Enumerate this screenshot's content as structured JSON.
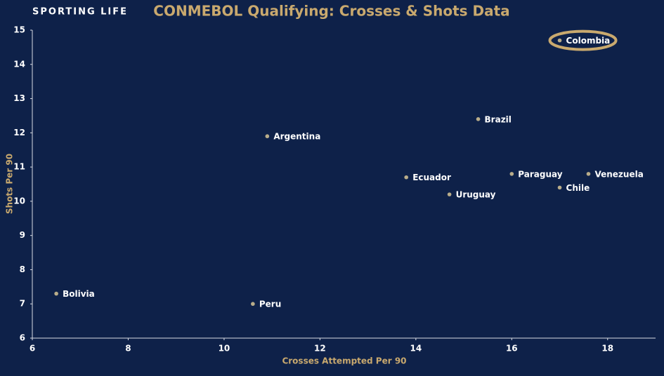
{
  "brand": "SPORTING LIFE",
  "chart_data": {
    "type": "scatter",
    "title": "CONMEBOL Qualifying: Crosses & Shots Data",
    "x_label": "Crosses Attempted Per 90",
    "y_label": "Shots Per 90",
    "labels": [
      "Colombia",
      "Brazil",
      "Argentina",
      "Ecuador",
      "Uruguay",
      "Paraguay",
      "Venezuela",
      "Chile",
      "Bolivia",
      "Peru"
    ],
    "x": [
      17.0,
      15.3,
      10.9,
      13.8,
      14.7,
      16.0,
      17.6,
      17.0,
      6.5,
      10.6
    ],
    "values": [
      14.7,
      12.4,
      11.9,
      10.7,
      10.2,
      10.8,
      10.8,
      10.4,
      7.3,
      7.0
    ],
    "color": "#b9ad8a",
    "highlight": "Colombia",
    "highlight_color": "#c9a96e",
    "xlim": [
      6,
      19
    ],
    "xticks": [
      6,
      8,
      10,
      12,
      14,
      16,
      18
    ],
    "ylim": [
      6,
      15
    ],
    "yticks": [
      6,
      7,
      8,
      9,
      10,
      11,
      12,
      13,
      14,
      15
    ]
  }
}
